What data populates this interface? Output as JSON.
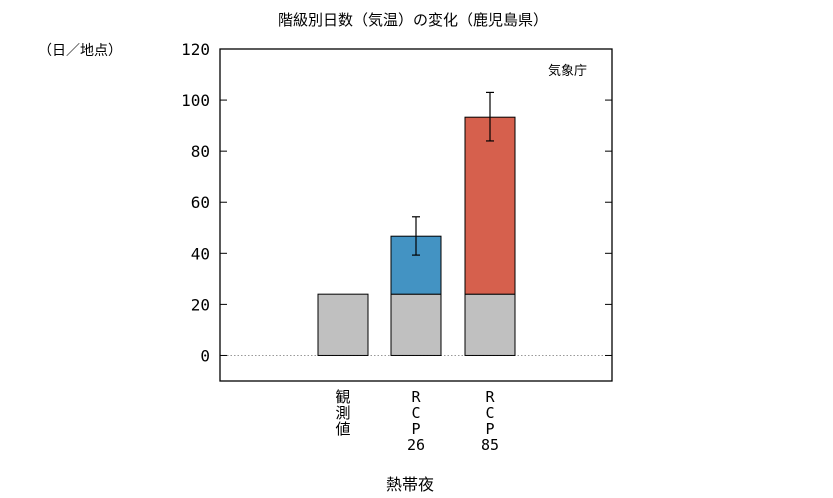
{
  "chart_data": {
    "type": "bar",
    "title": "階級別日数（気温）の変化（鹿児島県）",
    "unit_label": "（日／地点）",
    "source": "気象庁",
    "xlabel": "熱帯夜",
    "ylim": [
      -10,
      120
    ],
    "yticks": [
      0,
      20,
      40,
      60,
      80,
      100,
      120
    ],
    "categories": [
      {
        "lines": [
          "観",
          "測",
          "値"
        ]
      },
      {
        "lines": [
          "R",
          "C",
          "P",
          "26"
        ]
      },
      {
        "lines": [
          "R",
          "C",
          "P",
          "85"
        ]
      }
    ],
    "series": [
      {
        "role": "base",
        "color": "#c0c0c0",
        "values": [
          24,
          24,
          24
        ]
      },
      {
        "role": "increase",
        "colors": [
          null,
          "#4393c3",
          "#d6604d"
        ],
        "values": [
          0,
          22.7,
          69.3
        ]
      }
    ],
    "totals": [
      24,
      46.7,
      93.3
    ],
    "error_bars": [
      null,
      {
        "low": 39.3,
        "high": 54.3
      },
      {
        "low": 84.0,
        "high": 103.0
      }
    ],
    "grid": false,
    "zero_line": "dotted"
  }
}
